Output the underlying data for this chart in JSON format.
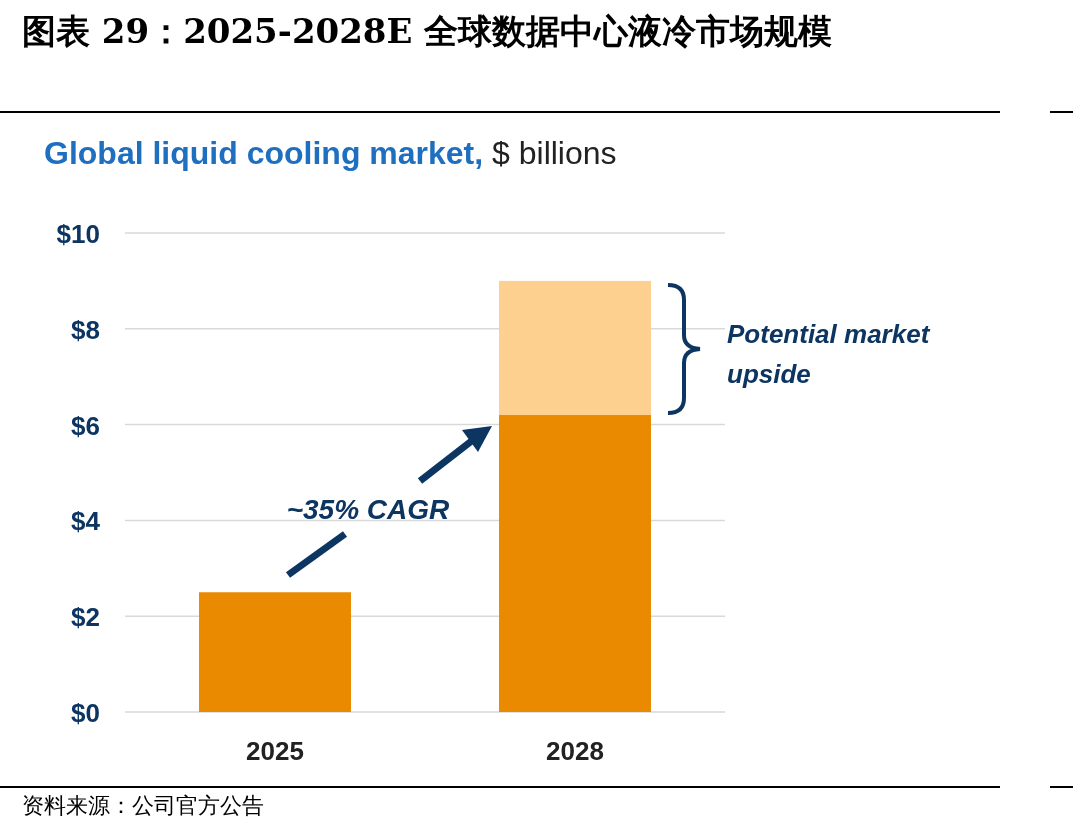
{
  "chart_data": {
    "type": "bar",
    "stacked": true,
    "title": "图表 29：2025-2028E 全球数据中心液冷市场规模",
    "subtitle": "Global liquid cooling market,",
    "ylabel": "$ billions",
    "categories": [
      "2025",
      "2028"
    ],
    "series": [
      {
        "color": "#e98a00",
        "values": [
          2.5,
          6.2
        ]
      },
      {
        "color": "#fdd08f",
        "values": [
          null,
          2.8
        ]
      }
    ],
    "ylim": [
      0,
      10
    ],
    "yticks": [
      {
        "value": 0,
        "label": "$0"
      },
      {
        "value": 2,
        "label": "$2"
      },
      {
        "value": 4,
        "label": "$4"
      },
      {
        "value": 6,
        "label": "$6"
      },
      {
        "value": 8,
        "label": "$8"
      },
      {
        "value": 10,
        "label": "$10"
      }
    ],
    "grid": "y",
    "annotations": [
      "~35% CAGR",
      "Potential market upside",
      "资料来源：公司官方公告"
    ]
  }
}
